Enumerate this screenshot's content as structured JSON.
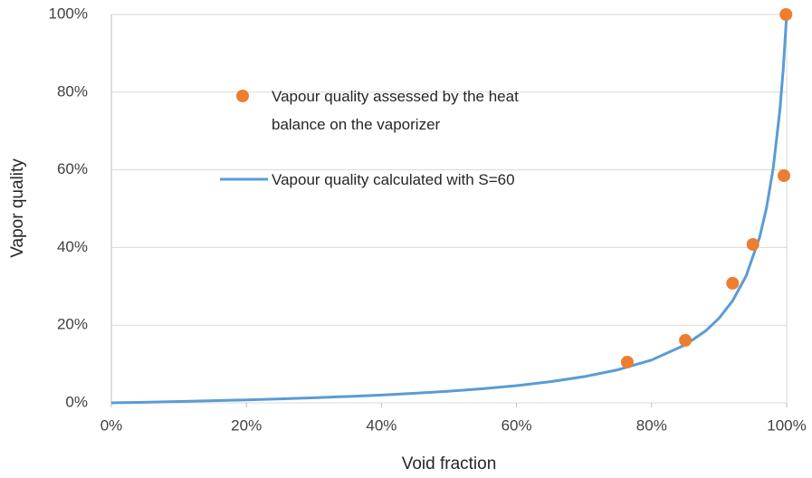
{
  "chart_data": {
    "type": "scatter",
    "x_label": "Void fraction",
    "y_label": "Vapor quality",
    "xlim": [
      0,
      100
    ],
    "ylim": [
      0,
      100
    ],
    "xticks": [
      {
        "value": 0,
        "label": "0%"
      },
      {
        "value": 20,
        "label": "20%"
      },
      {
        "value": 40,
        "label": "40%"
      },
      {
        "value": 60,
        "label": "60%"
      },
      {
        "value": 80,
        "label": "80%"
      },
      {
        "value": 100,
        "label": "100%"
      }
    ],
    "yticks": [
      {
        "value": 0,
        "label": "0%"
      },
      {
        "value": 20,
        "label": "20%"
      },
      {
        "value": 40,
        "label": "40%"
      },
      {
        "value": 60,
        "label": "60%"
      },
      {
        "value": 80,
        "label": "80%"
      },
      {
        "value": 100,
        "label": "100%"
      }
    ],
    "grid": true,
    "series": [
      {
        "name": "Vapour quality assessed by the heat balance on the vaporizer",
        "color": "#ed7d31",
        "mode": "markers",
        "x": [
          76.4,
          85.0,
          92.0,
          95.0,
          99.6,
          99.9
        ],
        "values": [
          10.5,
          16.1,
          30.8,
          40.8,
          58.5,
          100
        ]
      },
      {
        "name": "Vapour quality calculated with S=60",
        "color": "#5b9bd5",
        "mode": "line",
        "x": [
          0,
          5,
          10,
          15,
          20,
          25,
          30,
          35,
          40,
          45,
          50,
          55,
          60,
          65,
          70,
          75,
          80,
          85,
          88,
          90,
          92,
          94,
          96,
          97,
          98,
          99,
          99.5,
          100
        ],
        "values": [
          0,
          0.16,
          0.34,
          0.54,
          0.77,
          1.02,
          1.31,
          1.64,
          2.02,
          2.47,
          3.01,
          3.65,
          4.44,
          5.44,
          6.75,
          8.51,
          11.03,
          14.94,
          18.52,
          21.81,
          26.28,
          32.69,
          42.66,
          50.06,
          60.3,
          75.42,
          86.05,
          100
        ]
      }
    ]
  }
}
